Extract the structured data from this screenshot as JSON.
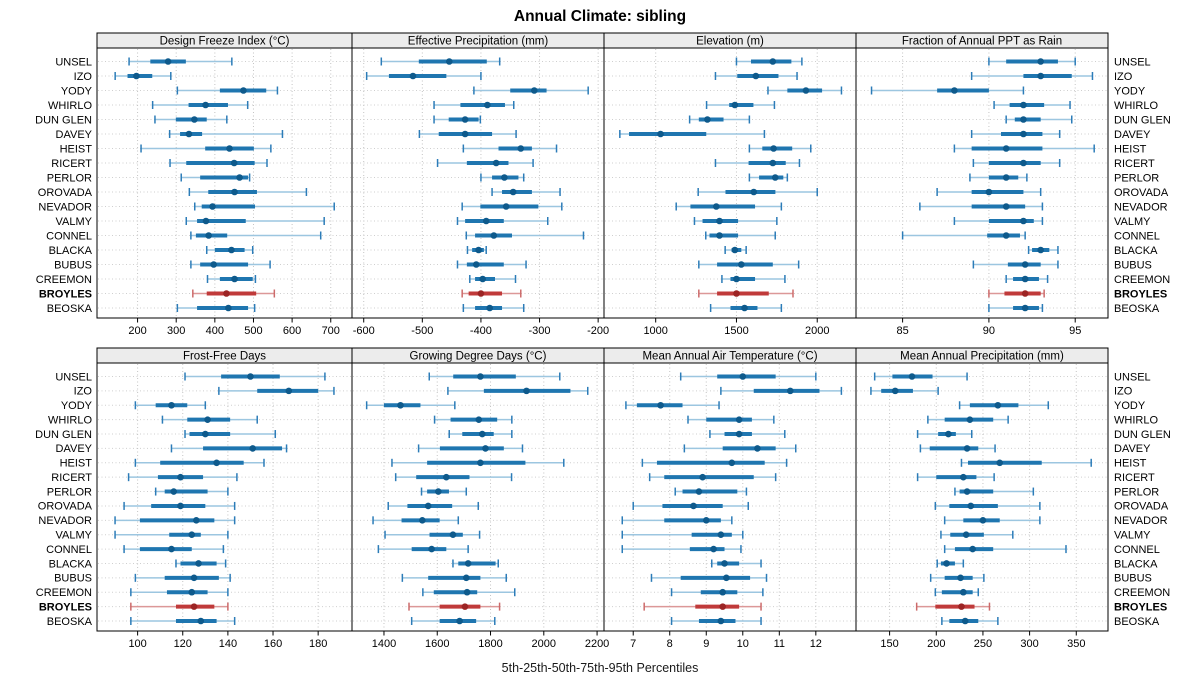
{
  "title": "Annual Climate: sibling",
  "caption": "5th-25th-50th-75th-95th Percentiles",
  "colors": {
    "blue_line": "#9cc6e0",
    "blue_cap": "#2c7cb8",
    "blue_box": "#1f76b0",
    "blue_dot": "#0e5a8c",
    "red_line": "#dc9898",
    "red_cap": "#cc6a6a",
    "red_box": "#c03a3a",
    "red_dot": "#9c2424",
    "header_bg": "#ececec",
    "grid": "#c4c4c4",
    "row_guide": "#cfcfcf",
    "border": "#000000",
    "text": "#000000"
  },
  "stations": [
    "UNSEL",
    "IZO",
    "YODY",
    "WHIRLO",
    "DUN GLEN",
    "DAVEY",
    "HEIST",
    "RICERT",
    "PERLOR",
    "OROVADA",
    "NEVADOR",
    "VALMY",
    "CONNEL",
    "BLACKA",
    "BUBUS",
    "CREEMON",
    "BROYLES",
    "BEOSKA"
  ],
  "highlight_station": "BROYLES",
  "chart_data": {
    "type": "dotplot-intervals",
    "percentiles": [
      5,
      25,
      50,
      75,
      95
    ],
    "legend_note": "each row: 5th-25th-50th-75th-95th percentile interval; BROYLES highlighted red",
    "panels": [
      {
        "title": "Design Freeze Index (°C)",
        "row": 0,
        "col": 0,
        "ticks": [
          200,
          300,
          400,
          500,
          600,
          700
        ],
        "domain": [
          95,
          755
        ],
        "values": [
          [
            178,
            233,
            279,
            325,
            444
          ],
          [
            142,
            174,
            197,
            238,
            286
          ],
          [
            303,
            413,
            474,
            533,
            562
          ],
          [
            239,
            332,
            376,
            434,
            485
          ],
          [
            245,
            299,
            347,
            379,
            431
          ],
          [
            283,
            310,
            333,
            367,
            575
          ],
          [
            209,
            375,
            438,
            501,
            545
          ],
          [
            284,
            326,
            450,
            503,
            535
          ],
          [
            313,
            362,
            464,
            486,
            490
          ],
          [
            334,
            383,
            451,
            509,
            637
          ],
          [
            348,
            366,
            394,
            504,
            709
          ],
          [
            326,
            354,
            377,
            480,
            683
          ],
          [
            338,
            351,
            384,
            432,
            674
          ],
          [
            379,
            400,
            443,
            477,
            498
          ],
          [
            338,
            362,
            397,
            486,
            543
          ],
          [
            381,
            413,
            451,
            498,
            505
          ],
          [
            343,
            379,
            430,
            507,
            554
          ],
          [
            303,
            354,
            435,
            486,
            503
          ]
        ]
      },
      {
        "title": "Effective Precipitation (mm)",
        "row": 0,
        "col": 1,
        "ticks": [
          -600,
          -500,
          -400,
          -300,
          -200
        ],
        "domain": [
          -620,
          -190
        ],
        "values": [
          [
            -570,
            -506,
            -454,
            -390,
            -368
          ],
          [
            -595,
            -557,
            -516,
            -459,
            -400
          ],
          [
            -412,
            -350,
            -309,
            -288,
            -217
          ],
          [
            -480,
            -435,
            -389,
            -359,
            -344
          ],
          [
            -480,
            -455,
            -427,
            -404,
            -401
          ],
          [
            -505,
            -472,
            -427,
            -381,
            -340
          ],
          [
            -430,
            -370,
            -332,
            -313,
            -271
          ],
          [
            -474,
            -424,
            -374,
            -353,
            -311
          ],
          [
            -400,
            -381,
            -360,
            -336,
            -327
          ],
          [
            -381,
            -364,
            -345,
            -313,
            -265
          ],
          [
            -432,
            -401,
            -357,
            -302,
            -262
          ],
          [
            -440,
            -427,
            -391,
            -361,
            -286
          ],
          [
            -425,
            -410,
            -378,
            -347,
            -225
          ],
          [
            -423,
            -415,
            -404,
            -395,
            -391
          ],
          [
            -440,
            -424,
            -408,
            -361,
            -323
          ],
          [
            -419,
            -410,
            -397,
            -376,
            -341
          ],
          [
            -432,
            -421,
            -400,
            -364,
            -332
          ],
          [
            -430,
            -410,
            -385,
            -364,
            -327
          ]
        ]
      },
      {
        "title": "Elevation (m)",
        "row": 0,
        "col": 2,
        "ticks": [
          1000,
          1500,
          2000
        ],
        "domain": [
          680,
          2240
        ],
        "values": [
          [
            1500,
            1590,
            1725,
            1840,
            1905
          ],
          [
            1370,
            1505,
            1620,
            1760,
            1875
          ],
          [
            1695,
            1815,
            1930,
            2030,
            2150
          ],
          [
            1315,
            1455,
            1490,
            1605,
            1735
          ],
          [
            1210,
            1267,
            1320,
            1420,
            1580
          ],
          [
            778,
            835,
            1030,
            1313,
            1673
          ],
          [
            1580,
            1660,
            1730,
            1845,
            1960
          ],
          [
            1370,
            1575,
            1725,
            1805,
            1890
          ],
          [
            1580,
            1640,
            1740,
            1790,
            1815
          ],
          [
            1263,
            1432,
            1607,
            1741,
            2000
          ],
          [
            1127,
            1215,
            1375,
            1615,
            1778
          ],
          [
            1240,
            1290,
            1395,
            1510,
            1750
          ],
          [
            1310,
            1333,
            1395,
            1510,
            1740
          ],
          [
            1430,
            1470,
            1490,
            1530,
            1560
          ],
          [
            1267,
            1380,
            1530,
            1725,
            1885
          ],
          [
            1410,
            1463,
            1500,
            1615,
            1800
          ],
          [
            1267,
            1380,
            1500,
            1700,
            1850
          ],
          [
            1340,
            1463,
            1550,
            1630,
            1778
          ]
        ]
      },
      {
        "title": "Fraction of Annual PPT as Rain",
        "row": 0,
        "col": 3,
        "ticks": [
          85,
          90,
          95
        ],
        "domain": [
          82.3,
          96.9
        ],
        "values": [
          [
            90,
            91,
            93,
            94,
            95
          ],
          [
            89,
            92,
            93,
            94.8,
            96
          ],
          [
            83.2,
            87,
            88,
            90,
            92
          ],
          [
            90.3,
            91.2,
            92,
            93.2,
            94.7
          ],
          [
            91,
            91.5,
            92,
            93,
            94.8
          ],
          [
            89,
            90.7,
            92,
            93.1,
            94.1
          ],
          [
            88,
            89,
            91,
            93.1,
            96.1
          ],
          [
            89.1,
            90,
            92,
            93,
            94.1
          ],
          [
            88.9,
            90,
            91,
            91.7,
            92.2
          ],
          [
            87,
            89,
            90,
            92,
            93
          ],
          [
            86,
            89,
            91,
            92.1,
            93.1
          ],
          [
            88,
            90,
            92,
            92.6,
            93.1
          ],
          [
            85,
            89.9,
            91,
            91.8,
            92.1
          ],
          [
            92.3,
            92.5,
            93,
            93.5,
            94
          ],
          [
            89.1,
            91.1,
            92.1,
            93,
            94
          ],
          [
            91,
            91.4,
            92.1,
            92.9,
            93.4
          ],
          [
            90,
            90.9,
            92.1,
            93,
            93.2
          ],
          [
            90,
            91.4,
            92.1,
            92.9,
            93.1
          ]
        ]
      },
      {
        "title": "Frost-Free Days",
        "row": 1,
        "col": 0,
        "ticks": [
          100,
          120,
          140,
          160,
          180
        ],
        "domain": [
          82,
          195
        ],
        "values": [
          [
            121,
            137,
            150,
            163,
            183
          ],
          [
            136,
            153,
            167,
            180,
            187
          ],
          [
            99,
            108,
            115,
            122,
            130
          ],
          [
            111,
            122,
            131,
            141,
            153
          ],
          [
            121,
            123,
            130,
            141,
            161
          ],
          [
            115,
            129,
            151,
            164,
            166
          ],
          [
            99,
            110,
            135,
            147,
            156
          ],
          [
            96,
            109,
            119,
            129,
            144
          ],
          [
            108,
            112,
            116,
            131,
            140
          ],
          [
            94,
            106,
            119,
            130,
            143
          ],
          [
            90,
            101,
            126,
            134,
            143
          ],
          [
            90,
            114,
            124,
            128,
            140
          ],
          [
            94,
            101,
            115,
            124,
            138
          ],
          [
            117,
            119,
            127,
            135,
            139
          ],
          [
            99,
            112,
            125,
            136,
            141
          ],
          [
            97,
            113,
            124,
            131,
            140
          ],
          [
            97,
            117,
            125,
            134,
            140
          ],
          [
            97,
            117,
            128,
            135,
            143
          ]
        ]
      },
      {
        "title": "Growing Degree Days (°C)",
        "row": 1,
        "col": 1,
        "ticks": [
          1400,
          1600,
          1800,
          2000,
          2200
        ],
        "domain": [
          1280,
          2226
        ],
        "values": [
          [
            1570,
            1660,
            1762,
            1895,
            2060
          ],
          [
            1640,
            1775,
            1935,
            2100,
            2165
          ],
          [
            1335,
            1400,
            1462,
            1537,
            1666
          ],
          [
            1590,
            1650,
            1756,
            1825,
            1880
          ],
          [
            1645,
            1694,
            1769,
            1812,
            1880
          ],
          [
            1530,
            1610,
            1781,
            1850,
            1920
          ],
          [
            1430,
            1562,
            1762,
            1931,
            2075
          ],
          [
            1444,
            1521,
            1634,
            1721,
            1879
          ],
          [
            1541,
            1562,
            1604,
            1644,
            1709
          ],
          [
            1416,
            1488,
            1566,
            1656,
            1754
          ],
          [
            1359,
            1466,
            1544,
            1609,
            1679
          ],
          [
            1404,
            1571,
            1659,
            1696,
            1759
          ],
          [
            1379,
            1504,
            1579,
            1634,
            1716
          ],
          [
            1659,
            1679,
            1716,
            1819,
            1829
          ],
          [
            1469,
            1566,
            1709,
            1762,
            1859
          ],
          [
            1546,
            1587,
            1712,
            1750,
            1891
          ],
          [
            1494,
            1609,
            1704,
            1762,
            1834
          ],
          [
            1504,
            1609,
            1684,
            1746,
            1816
          ]
        ]
      },
      {
        "title": "Mean Annual Air Temperature (°C)",
        "row": 1,
        "col": 2,
        "ticks": [
          7,
          8,
          9,
          10,
          11,
          12
        ],
        "domain": [
          6.2,
          13.1
        ],
        "values": [
          [
            8.3,
            9.3,
            10.0,
            10.9,
            12.0
          ],
          [
            9.4,
            10.3,
            11.3,
            12.1,
            12.7
          ],
          [
            6.8,
            7.1,
            7.75,
            8.35,
            9.35
          ],
          [
            8.5,
            9.0,
            9.9,
            10.25,
            10.85
          ],
          [
            9.1,
            9.5,
            9.9,
            10.25,
            11.15
          ],
          [
            8.4,
            9.45,
            10.4,
            10.9,
            11.45
          ],
          [
            7.25,
            7.65,
            9.7,
            10.6,
            11.2
          ],
          [
            7.45,
            7.85,
            8.9,
            10.3,
            10.9
          ],
          [
            8.15,
            8.35,
            8.8,
            9.85,
            10.1
          ],
          [
            7.0,
            7.8,
            8.65,
            9.45,
            10.15
          ],
          [
            6.7,
            7.85,
            9.0,
            9.4,
            9.7
          ],
          [
            6.7,
            8.6,
            9.4,
            9.7,
            10.0
          ],
          [
            6.7,
            8.55,
            9.2,
            9.5,
            9.95
          ],
          [
            9.15,
            9.3,
            9.5,
            9.9,
            10.5
          ],
          [
            7.5,
            8.3,
            9.55,
            10.2,
            10.65
          ],
          [
            8.05,
            8.85,
            9.45,
            9.85,
            10.55
          ],
          [
            7.3,
            8.7,
            9.45,
            9.9,
            10.5
          ],
          [
            8.05,
            8.8,
            9.4,
            9.8,
            10.5
          ]
        ]
      },
      {
        "title": "Mean Annual Precipitation (mm)",
        "row": 1,
        "col": 3,
        "ticks": [
          150,
          200,
          250,
          300,
          350
        ],
        "domain": [
          114,
          384
        ],
        "values": [
          [
            134,
            153,
            174,
            196,
            233
          ],
          [
            130,
            141,
            156,
            175,
            202
          ],
          [
            225,
            236,
            266,
            288,
            320
          ],
          [
            191,
            209,
            236,
            261,
            277
          ],
          [
            180,
            202,
            213,
            221,
            238
          ],
          [
            183,
            193,
            233,
            245,
            263
          ],
          [
            227,
            234,
            268,
            313,
            366
          ],
          [
            180,
            200,
            229,
            243,
            262
          ],
          [
            220,
            225,
            233,
            261,
            304
          ],
          [
            199,
            214,
            237,
            266,
            311
          ],
          [
            209,
            229,
            250,
            268,
            311
          ],
          [
            205,
            215,
            232,
            251,
            282
          ],
          [
            209,
            220,
            239,
            261,
            339
          ],
          [
            201,
            205,
            211,
            220,
            229
          ],
          [
            194,
            209,
            226,
            239,
            251
          ],
          [
            199,
            206,
            229,
            239,
            245
          ],
          [
            179,
            199,
            227,
            241,
            257
          ],
          [
            206,
            214,
            231,
            245,
            266
          ]
        ]
      }
    ]
  }
}
